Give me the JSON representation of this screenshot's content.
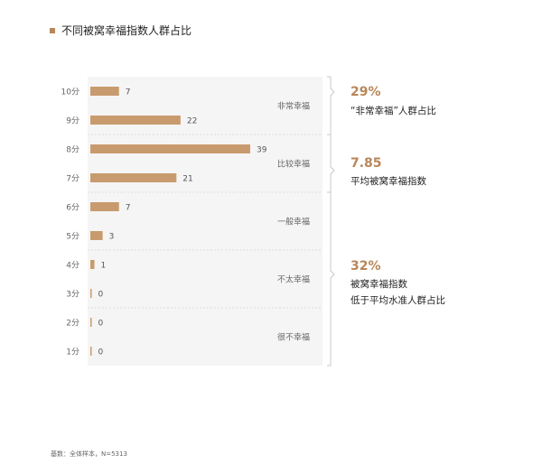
{
  "title": "不同被窝幸福指数人群占比",
  "footnote": "基数：全体样本，N=5313",
  "colors": {
    "bar": "#c89b6e",
    "accent": "#b8865a",
    "band": "#f5f5f5",
    "bracket": "#c8c8c8",
    "tick_text": "#666666",
    "value_text": "#555555"
  },
  "chart_data": {
    "type": "bar",
    "orientation": "horizontal",
    "categories": [
      "10分",
      "9分",
      "8分",
      "7分",
      "6分",
      "5分",
      "4分",
      "3分",
      "2分",
      "1分"
    ],
    "values": [
      7,
      22,
      39,
      21,
      7,
      3,
      1,
      0,
      0,
      0
    ],
    "value_labels": [
      "7",
      "22",
      "39",
      "21",
      "7",
      "3",
      "1",
      "0",
      "0",
      "0"
    ],
    "xlim": [
      0,
      39
    ],
    "groups": [
      {
        "label": "非常幸福",
        "from": 0,
        "to": 1
      },
      {
        "label": "比较幸福",
        "from": 2,
        "to": 3
      },
      {
        "label": "一般幸福",
        "from": 4,
        "to": 5
      },
      {
        "label": "不太幸福",
        "from": 6,
        "to": 7
      },
      {
        "label": "很不幸福",
        "from": 8,
        "to": 9
      }
    ]
  },
  "annotations": [
    {
      "number": "29%",
      "lines": [
        "“非常幸福”人群占比"
      ]
    },
    {
      "number": "7.85",
      "lines": [
        "平均被窝幸福指数"
      ]
    },
    {
      "number": "32%",
      "lines": [
        "被窝幸福指数",
        "低于平均水准人群占比"
      ]
    }
  ]
}
